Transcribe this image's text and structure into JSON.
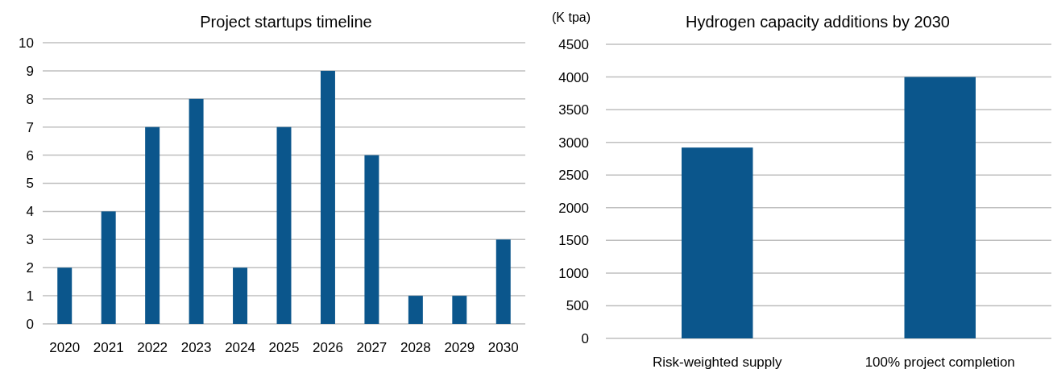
{
  "chart_data": [
    {
      "type": "bar",
      "title": "Project startups timeline",
      "categories": [
        "2020",
        "2021",
        "2022",
        "2023",
        "2024",
        "2025",
        "2026",
        "2027",
        "2028",
        "2029",
        "2030"
      ],
      "values": [
        2,
        4,
        7,
        8,
        2,
        7,
        9,
        6,
        1,
        1,
        3
      ],
      "color": "#0b568c",
      "ylim": [
        0,
        10
      ],
      "yticks": [
        0,
        1,
        2,
        3,
        4,
        5,
        6,
        7,
        8,
        9,
        10
      ],
      "grid": "y"
    },
    {
      "type": "bar",
      "title": "Hydrogen capacity additions by 2030",
      "ylabel": "(K tpa)",
      "categories": [
        "Risk-weighted supply",
        "100% project completion"
      ],
      "values": [
        2920,
        4000
      ],
      "color": "#0b568c",
      "ylim": [
        0,
        4500
      ],
      "yticks": [
        0,
        500,
        1000,
        1500,
        2000,
        2500,
        3000,
        3500,
        4000,
        4500
      ],
      "grid": "y"
    }
  ]
}
